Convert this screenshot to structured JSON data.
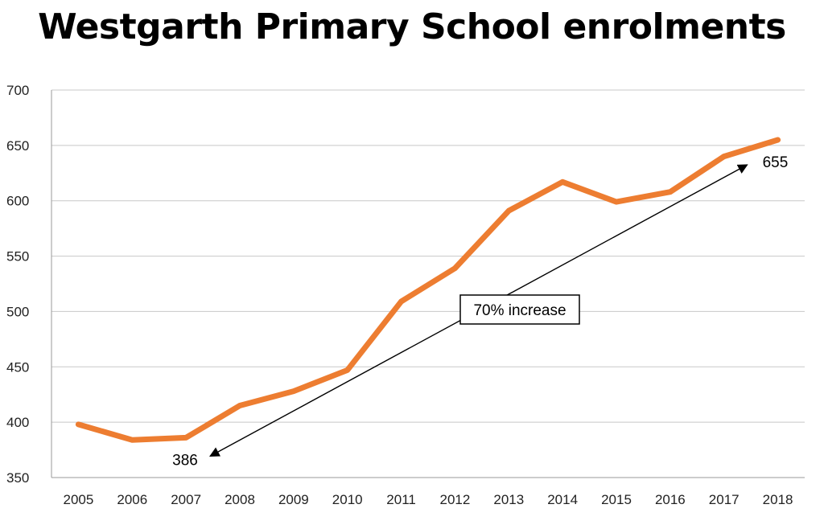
{
  "chart_data": {
    "type": "line",
    "title": "Westgarth Primary School enrolments",
    "xlabel": "",
    "ylabel": "",
    "x": [
      "2005",
      "2006",
      "2007",
      "2008",
      "2009",
      "2010",
      "2011",
      "2012",
      "2013",
      "2014",
      "2015",
      "2016",
      "2017",
      "2018"
    ],
    "series": [
      {
        "values": [
          398,
          384,
          386,
          415,
          428,
          447,
          509,
          539,
          591,
          617,
          599,
          608,
          640,
          655
        ],
        "color": "#ED7D31"
      }
    ],
    "ylim": [
      350,
      700
    ],
    "yticks": [
      350,
      400,
      450,
      500,
      550,
      600,
      650,
      700
    ],
    "grid": true,
    "legend": "none",
    "annotations": {
      "start_label": "386",
      "end_label": "655",
      "increase_label": "70% increase"
    }
  }
}
